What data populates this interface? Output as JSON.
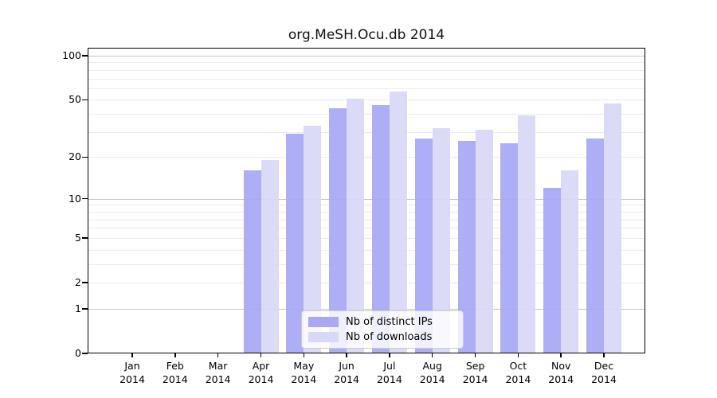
{
  "chart_data": {
    "type": "bar",
    "title": "org.MeSH.Ocu.db 2014",
    "categories": [
      "Jan 2014",
      "Feb 2014",
      "Mar 2014",
      "Apr 2014",
      "May 2014",
      "Jun 2014",
      "Jul 2014",
      "Aug 2014",
      "Sep 2014",
      "Oct 2014",
      "Nov 2014",
      "Dec 2014"
    ],
    "series": [
      {
        "name": "Nb of distinct IPs",
        "color": "#a8a8f5",
        "values": [
          0,
          0,
          0,
          16,
          29,
          44,
          46,
          27,
          26,
          25,
          12,
          27
        ]
      },
      {
        "name": "Nb of downloads",
        "color": "#d8d8f8",
        "values": [
          0,
          0,
          0,
          19,
          33,
          51,
          57,
          32,
          31,
          39,
          16,
          47
        ]
      }
    ],
    "yscale": "log1p",
    "yticks": [
      0,
      1,
      2,
      5,
      10,
      20,
      50,
      100
    ],
    "ylim": [
      0,
      113
    ],
    "grid": true,
    "legend_position": "lower center",
    "colors": {
      "grid_minor": "#ececec",
      "grid_decade": "#c6c6c6",
      "axis": "#000000",
      "background": "#ffffff"
    }
  }
}
